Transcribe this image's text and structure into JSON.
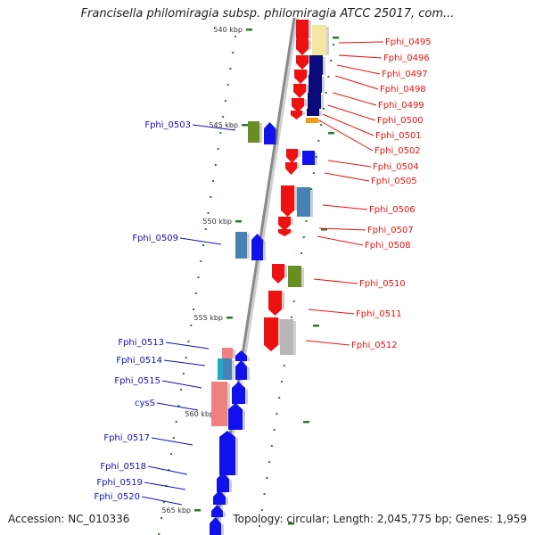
{
  "title": "Francisella philomiragia subsp. philomiragia ATCC 25017, com...",
  "footer": {
    "accession": "Accession: NC_010336",
    "summary": "Topology: circular; Length: 2,045,775 bp; Genes: 1,959"
  },
  "colors": {
    "red": "#ee1111",
    "blue": "#1111ee",
    "navy": "#0a0a7a",
    "olive": "#6b8e23",
    "steel": "#4682b4",
    "pink": "#f08080",
    "gray": "#b8b8b8",
    "yellow": "#f5e6a0",
    "orange": "#f39c12",
    "cyan": "#22aacc",
    "tick": "#2a7a2a",
    "label_red": "#ee1111",
    "label_blue": "#1111bb"
  },
  "kbp_ticks": [
    {
      "label": "540 kbp",
      "kbp": 540
    },
    {
      "label": "545 kbp",
      "kbp": 545
    },
    {
      "label": "550 kbp",
      "kbp": 550
    },
    {
      "label": "555 kbp",
      "kbp": 555
    },
    {
      "label": "560 kbp",
      "kbp": 560
    },
    {
      "label": "565 kbp",
      "kbp": 565
    }
  ],
  "right_labels": [
    "Fphi_0495",
    "Fphi_0496",
    "Fphi_0497",
    "Fphi_0498",
    "Fphi_0499",
    "Fphi_0500",
    "Fphi_0501",
    "Fphi_0502",
    "Fphi_0504",
    "Fphi_0505",
    "Fphi_0506",
    "Fphi_0507",
    "Fphi_0508",
    "Fphi_0510",
    "Fphi_0511",
    "Fphi_0512"
  ],
  "left_labels": [
    "Fphi_0503",
    "Fphi_0509",
    "Fphi_0513",
    "Fphi_0514",
    "Fphi_0515",
    "cysS",
    "Fphi_0517",
    "Fphi_0518",
    "Fphi_0519",
    "Fphi_0520"
  ]
}
